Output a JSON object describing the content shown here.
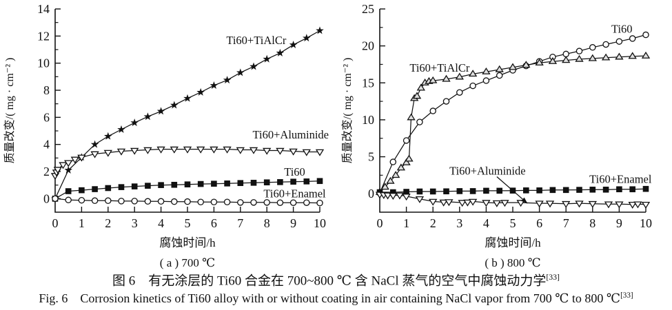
{
  "figure": {
    "caption_zh": "图 6　有无涂层的 Ti60 合金在 700~800 ℃ 含 NaCl 蒸气的空气中腐蚀动力学",
    "caption_zh_ref": "[33]",
    "caption_en": "Fig. 6　Corrosion kinetics of Ti60 alloy with or without coating in air containing NaCl vapor from 700 ℃ to 800 ℃",
    "caption_en_ref": "[33]"
  },
  "chart_data": [
    {
      "type": "line",
      "subcaption": "( a ) 700 ℃",
      "xlabel": "腐蚀时间/h",
      "ylabel": "质量改变/( mg · cm⁻² )",
      "xlim": [
        0,
        10
      ],
      "ylim": [
        -1,
        14
      ],
      "xticks": [
        0,
        1,
        2,
        3,
        4,
        5,
        6,
        7,
        8,
        9,
        10
      ],
      "yticks": [
        0,
        2,
        4,
        6,
        8,
        10,
        12,
        14
      ],
      "yticks_minor": [
        1,
        3,
        5,
        7,
        9,
        11,
        13
      ],
      "grid": false,
      "legend_position": "inline-labels",
      "series": [
        {
          "name": "Ti60+TiAlCr",
          "marker": "star",
          "fill": "black",
          "x": [
            0,
            0.5,
            1,
            1.5,
            2,
            2.5,
            3,
            3.5,
            4,
            4.5,
            5,
            5.5,
            6,
            6.5,
            7,
            7.5,
            8,
            8.5,
            9,
            9.5,
            10
          ],
          "y": [
            0,
            2.1,
            3.05,
            4.0,
            4.6,
            5.1,
            5.6,
            6.05,
            6.45,
            6.9,
            7.4,
            7.85,
            8.35,
            8.75,
            9.3,
            9.75,
            10.3,
            10.75,
            11.35,
            11.85,
            12.4
          ]
        },
        {
          "name": "Ti60+Aluminide",
          "marker": "triangle-down",
          "fill": "white",
          "x": [
            0,
            0.05,
            0.1,
            0.3,
            0.5,
            0.75,
            1,
            1.5,
            2,
            2.5,
            3,
            3.5,
            4,
            4.5,
            5,
            5.5,
            6,
            6.5,
            7,
            7.5,
            8,
            8.5,
            9,
            9.5,
            10
          ],
          "y": [
            1.7,
            1.95,
            2.15,
            2.5,
            2.65,
            2.9,
            3.05,
            3.3,
            3.4,
            3.5,
            3.55,
            3.6,
            3.65,
            3.65,
            3.65,
            3.65,
            3.65,
            3.65,
            3.6,
            3.6,
            3.55,
            3.55,
            3.5,
            3.45,
            3.45
          ]
        },
        {
          "name": "Ti60",
          "marker": "square",
          "fill": "black",
          "x": [
            0,
            0.5,
            1,
            1.5,
            2,
            2.5,
            3,
            3.5,
            4,
            4.5,
            5,
            5.5,
            6,
            6.5,
            7,
            7.5,
            8,
            8.5,
            9,
            9.5,
            10
          ],
          "y": [
            0,
            0.55,
            0.62,
            0.7,
            0.78,
            0.85,
            0.9,
            0.95,
            1.0,
            1.02,
            1.05,
            1.08,
            1.1,
            1.12,
            1.15,
            1.17,
            1.2,
            1.22,
            1.25,
            1.27,
            1.3
          ]
        },
        {
          "name": "Ti60+Enamel",
          "marker": "circle",
          "fill": "white",
          "x": [
            0,
            0.5,
            1,
            1.5,
            2,
            2.5,
            3,
            3.5,
            4,
            4.5,
            5,
            5.5,
            6,
            6.5,
            7,
            7.5,
            8,
            8.5,
            9,
            9.5,
            10
          ],
          "y": [
            0,
            -0.1,
            -0.12,
            -0.15,
            -0.15,
            -0.18,
            -0.18,
            -0.2,
            -0.2,
            -0.22,
            -0.22,
            -0.25,
            -0.25,
            -0.25,
            -0.28,
            -0.28,
            -0.28,
            -0.3,
            -0.3,
            -0.3,
            -0.32
          ]
        }
      ],
      "labels": [
        {
          "text": "Ti60+TiAlCr",
          "x": 7.6,
          "y": 11.4
        },
        {
          "text": "Ti60+Aluminide",
          "x": 8.9,
          "y": 4.45
        },
        {
          "text": "Ti60",
          "x": 9.05,
          "y": 1.7
        },
        {
          "text": "Ti60+Enamel",
          "x": 9.05,
          "y": 0.1
        }
      ]
    },
    {
      "type": "line",
      "subcaption": "( b ) 800 ℃",
      "xlabel": "腐蚀时间/h",
      "ylabel": "质量改变/( mg · cm⁻² )",
      "xlim": [
        0,
        10
      ],
      "ylim": [
        -2.5,
        25
      ],
      "xticks": [
        0,
        1,
        2,
        3,
        4,
        5,
        6,
        7,
        8,
        9,
        10
      ],
      "yticks": [
        0,
        5,
        10,
        15,
        20,
        25
      ],
      "yticks_minor": [
        2.5,
        7.5,
        12.5,
        17.5,
        22.5
      ],
      "grid": false,
      "legend_position": "inline-labels",
      "series": [
        {
          "name": "Ti60",
          "marker": "circle",
          "fill": "white",
          "x": [
            0,
            0.5,
            1,
            1.5,
            2,
            2.5,
            3,
            3.5,
            4,
            4.5,
            5,
            5.5,
            6,
            6.5,
            7,
            7.5,
            8,
            8.5,
            9,
            9.5,
            10
          ],
          "y": [
            0.1,
            4.3,
            7.2,
            9.7,
            11.2,
            12.5,
            13.7,
            14.6,
            15.3,
            16.0,
            16.7,
            17.3,
            17.9,
            18.5,
            18.9,
            19.3,
            19.8,
            20.2,
            20.6,
            21.0,
            21.5
          ]
        },
        {
          "name": "Ti60+TiAlCr",
          "marker": "triangle-up",
          "fill": "gray",
          "x": [
            0,
            0.2,
            0.4,
            0.6,
            0.8,
            1.0,
            1.1,
            1.18,
            1.3,
            1.4,
            1.55,
            1.7,
            1.85,
            2,
            2.5,
            3,
            3.5,
            4,
            4.5,
            5,
            5.5,
            6,
            6.5,
            7,
            7.5,
            8,
            8.5,
            9,
            9.5,
            10
          ],
          "y": [
            0.2,
            0.9,
            1.7,
            2.5,
            3.5,
            4.2,
            4.7,
            10.3,
            12.9,
            13.2,
            14.3,
            15.0,
            15.2,
            15.3,
            15.5,
            15.8,
            16.2,
            16.5,
            16.8,
            17.1,
            17.4,
            17.7,
            17.9,
            18.05,
            18.2,
            18.3,
            18.4,
            18.5,
            18.6,
            18.65
          ]
        },
        {
          "name": "Ti60+Enamel",
          "marker": "square",
          "fill": "black",
          "x": [
            0,
            0.5,
            1,
            1.5,
            2,
            2.5,
            3,
            3.5,
            4,
            4.5,
            5,
            5.5,
            6,
            6.5,
            7,
            7.5,
            8,
            8.5,
            9,
            9.5,
            10
          ],
          "y": [
            0.2,
            0.2,
            0.25,
            0.3,
            0.3,
            0.32,
            0.35,
            0.35,
            0.4,
            0.4,
            0.42,
            0.45,
            0.45,
            0.5,
            0.5,
            0.52,
            0.55,
            0.55,
            0.6,
            0.6,
            0.65
          ]
        },
        {
          "name": "Ti60+Aluminide",
          "marker": "triangle-down",
          "fill": "white",
          "x": [
            0,
            0.15,
            0.3,
            0.5,
            0.75,
            1,
            1.5,
            2,
            2.4,
            2.6,
            3.1,
            3.3,
            3.5,
            4,
            4.4,
            4.7,
            5.3,
            6,
            6.4,
            7,
            7.5,
            8,
            8.6,
            9,
            9.5,
            9.7,
            10
          ],
          "y": [
            -0.1,
            -0.15,
            -0.2,
            -0.25,
            -0.2,
            -0.35,
            -0.7,
            -1.05,
            -1.15,
            -1.1,
            -1.2,
            -1.15,
            -1.05,
            -1.2,
            -1.25,
            -1.2,
            -1.2,
            -1.3,
            -1.3,
            -1.35,
            -1.3,
            -1.35,
            -1.4,
            -1.4,
            -1.45,
            -1.4,
            -1.45
          ]
        }
      ],
      "labels": [
        {
          "text": "Ti60+TiAlCr",
          "x": 2.25,
          "y": 16.5
        },
        {
          "text": "Ti60",
          "x": 9.1,
          "y": 21.8
        },
        {
          "text": "Ti60+Enamel",
          "x": 9.05,
          "y": 1.45
        }
      ],
      "annotation": {
        "text": "Ti60+Aluminide",
        "text_x": 4.05,
        "text_y": 2.6,
        "arrow_from": [
          4.4,
          2.3
        ],
        "arrow_to": [
          5.55,
          -1.3
        ]
      }
    }
  ]
}
